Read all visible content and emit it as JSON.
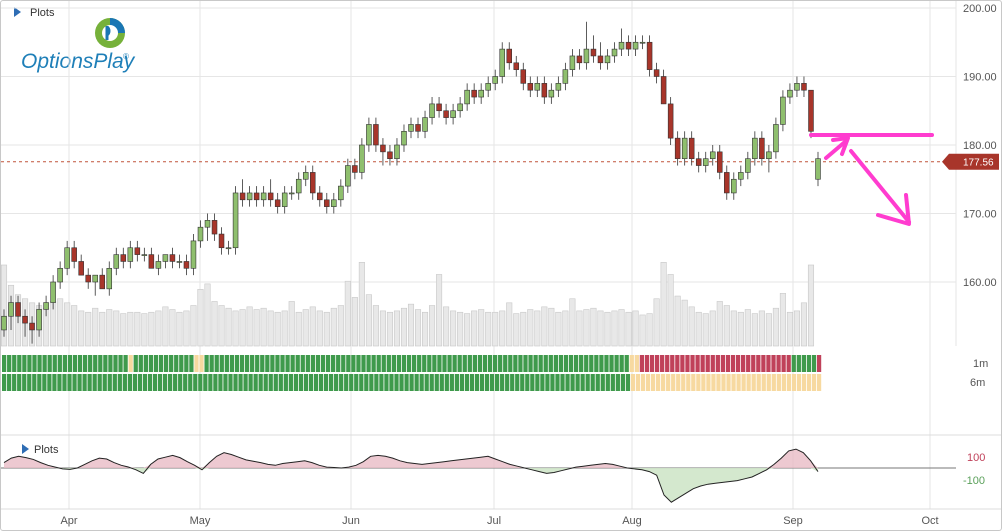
{
  "top_panel_label": "Plots",
  "bottom_panel_label": "Plots",
  "logo_text": "OptionsPlay",
  "logo_mark": "®",
  "heatmap_labels": [
    "1m",
    "6m"
  ],
  "current_price_label": "177.56",
  "colors": {
    "up": "#8fbf6e",
    "down": "#a8352a",
    "volume": "#e8e8e8",
    "heat_green": "#3f9a4c",
    "heat_yellow": "#f7d9a0",
    "heat_red": "#c0415a",
    "annotation": "#ff3ccf",
    "price_line": "#c0553c"
  },
  "chart_data": {
    "type": "candlestick",
    "x_labels": [
      "Apr",
      "May",
      "Jun",
      "Jul",
      "Aug",
      "Sep",
      "Oct"
    ],
    "y_ticks": [
      "200.00",
      "190.00",
      "180.00",
      "170.00",
      "160.00"
    ],
    "ylim": [
      150,
      201
    ],
    "current_price": 177.56,
    "candles": [
      [
        153,
        156,
        152,
        155
      ],
      [
        155,
        158,
        153,
        157
      ],
      [
        157,
        158,
        154,
        155
      ],
      [
        155,
        156,
        152,
        154
      ],
      [
        154,
        155,
        151,
        153
      ],
      [
        153,
        157,
        152,
        156
      ],
      [
        156,
        158,
        155,
        157
      ],
      [
        157,
        161,
        156,
        160
      ],
      [
        160,
        163,
        159,
        162
      ],
      [
        162,
        166,
        161,
        165
      ],
      [
        165,
        166,
        162,
        163
      ],
      [
        163,
        164,
        161,
        161
      ],
      [
        161,
        162,
        159,
        160
      ],
      [
        160,
        161,
        158,
        161
      ],
      [
        161,
        162,
        159,
        159
      ],
      [
        159,
        163,
        158,
        162
      ],
      [
        162,
        165,
        161,
        164
      ],
      [
        164,
        165,
        162,
        163
      ],
      [
        163,
        166,
        162,
        165
      ],
      [
        165,
        166,
        163,
        164
      ],
      [
        164,
        165,
        163,
        164
      ],
      [
        164,
        165,
        162,
        162
      ],
      [
        162,
        164,
        161,
        163
      ],
      [
        163,
        164,
        162,
        164
      ],
      [
        164,
        165,
        162,
        163
      ],
      [
        163,
        164,
        162,
        163
      ],
      [
        163,
        164,
        161,
        162
      ],
      [
        162,
        167,
        161,
        166
      ],
      [
        166,
        169,
        165,
        168
      ],
      [
        168,
        170,
        166,
        169
      ],
      [
        169,
        170,
        166,
        167
      ],
      [
        167,
        168,
        164,
        165
      ],
      [
        165,
        166,
        164,
        165
      ],
      [
        165,
        174,
        164,
        173
      ],
      [
        173,
        175,
        171,
        172
      ],
      [
        172,
        174,
        171,
        173
      ],
      [
        173,
        174,
        171,
        172
      ],
      [
        172,
        174,
        171,
        173
      ],
      [
        173,
        175,
        171,
        172
      ],
      [
        172,
        173,
        170,
        171
      ],
      [
        171,
        174,
        170,
        173
      ],
      [
        173,
        174,
        172,
        173
      ],
      [
        173,
        176,
        172,
        175
      ],
      [
        175,
        177,
        174,
        176
      ],
      [
        176,
        177,
        172,
        173
      ],
      [
        173,
        174,
        171,
        172
      ],
      [
        172,
        173,
        170,
        171
      ],
      [
        171,
        173,
        170,
        172
      ],
      [
        172,
        175,
        171,
        174
      ],
      [
        174,
        178,
        173,
        177
      ],
      [
        177,
        178,
        175,
        176
      ],
      [
        176,
        181,
        175,
        180
      ],
      [
        180,
        184,
        179,
        183
      ],
      [
        183,
        184,
        179,
        180
      ],
      [
        180,
        181,
        177,
        179
      ],
      [
        179,
        180,
        177,
        178
      ],
      [
        178,
        181,
        177,
        180
      ],
      [
        180,
        183,
        179,
        182
      ],
      [
        182,
        184,
        181,
        183
      ],
      [
        183,
        184,
        181,
        182
      ],
      [
        182,
        185,
        181,
        184
      ],
      [
        184,
        187,
        183,
        186
      ],
      [
        186,
        187,
        184,
        185
      ],
      [
        185,
        186,
        183,
        184
      ],
      [
        184,
        186,
        183,
        185
      ],
      [
        185,
        187,
        184,
        186
      ],
      [
        186,
        189,
        185,
        188
      ],
      [
        188,
        189,
        186,
        187
      ],
      [
        187,
        189,
        186,
        188
      ],
      [
        188,
        190,
        187,
        189
      ],
      [
        189,
        191,
        188,
        190
      ],
      [
        190,
        195,
        189,
        194
      ],
      [
        194,
        195,
        191,
        192
      ],
      [
        192,
        193,
        190,
        191
      ],
      [
        191,
        192,
        188,
        189
      ],
      [
        189,
        190,
        187,
        188
      ],
      [
        188,
        190,
        187,
        189
      ],
      [
        189,
        190,
        186,
        187
      ],
      [
        187,
        189,
        186,
        188
      ],
      [
        188,
        190,
        187,
        189
      ],
      [
        189,
        192,
        188,
        191
      ],
      [
        191,
        194,
        190,
        193
      ],
      [
        193,
        194,
        191,
        192
      ],
      [
        192,
        198,
        191,
        194
      ],
      [
        194,
        196,
        192,
        193
      ],
      [
        193,
        195,
        191,
        192
      ],
      [
        192,
        194,
        191,
        193
      ],
      [
        193,
        195,
        192,
        194
      ],
      [
        194,
        197,
        193,
        195
      ],
      [
        195,
        196,
        193,
        194
      ],
      [
        194,
        196,
        193,
        195
      ],
      [
        195,
        196,
        194,
        195
      ],
      [
        195,
        196,
        190,
        191
      ],
      [
        191,
        192,
        189,
        190
      ],
      [
        190,
        191,
        186,
        186
      ],
      [
        186,
        187,
        180,
        181
      ],
      [
        181,
        182,
        177,
        178
      ],
      [
        178,
        182,
        177,
        181
      ],
      [
        181,
        182,
        177,
        178
      ],
      [
        178,
        179,
        176,
        177
      ],
      [
        177,
        179,
        176,
        178
      ],
      [
        178,
        180,
        177,
        179
      ],
      [
        179,
        180,
        175,
        176
      ],
      [
        176,
        177,
        172,
        173
      ],
      [
        173,
        176,
        172,
        175
      ],
      [
        175,
        177,
        174,
        176
      ],
      [
        176,
        179,
        175,
        178
      ],
      [
        178,
        182,
        177,
        181
      ],
      [
        181,
        182,
        177,
        178
      ],
      [
        178,
        180,
        176,
        179
      ],
      [
        179,
        184,
        178,
        183
      ],
      [
        183,
        188,
        182,
        187
      ],
      [
        187,
        189,
        186,
        188
      ],
      [
        188,
        190,
        187,
        189
      ],
      [
        189,
        190,
        187,
        188
      ],
      [
        188,
        188,
        181,
        182
      ],
      [
        175,
        179,
        174,
        178
      ]
    ],
    "volume": [
      6.0,
      4.5,
      3.8,
      3.5,
      3.2,
      3.0,
      2.8,
      3.3,
      3.5,
      3.2,
      3.0,
      2.6,
      2.5,
      2.8,
      2.5,
      2.7,
      2.6,
      2.4,
      2.5,
      2.5,
      2.4,
      2.5,
      2.6,
      2.9,
      2.7,
      2.5,
      2.6,
      3.0,
      4.2,
      4.6,
      3.3,
      3.0,
      2.8,
      2.6,
      2.7,
      2.9,
      2.7,
      2.8,
      2.6,
      2.5,
      2.6,
      3.3,
      2.5,
      2.7,
      2.9,
      2.6,
      2.5,
      2.8,
      3.0,
      4.8,
      3.6,
      6.2,
      3.8,
      3.0,
      2.6,
      2.5,
      2.6,
      2.8,
      3.1,
      2.7,
      2.5,
      3.0,
      5.3,
      2.9,
      2.6,
      2.5,
      2.4,
      2.6,
      2.7,
      2.5,
      2.5,
      2.6,
      3.2,
      2.4,
      2.5,
      2.7,
      2.6,
      2.9,
      2.8,
      2.5,
      2.6,
      3.5,
      2.6,
      2.7,
      2.8,
      2.6,
      2.5,
      2.6,
      2.7,
      2.5,
      2.6,
      2.3,
      2.4,
      3.5,
      6.2,
      5.3,
      3.7,
      3.4,
      2.9,
      2.5,
      2.4,
      2.6,
      3.3,
      3.0,
      2.6,
      2.5,
      2.7,
      2.4,
      2.6,
      2.4,
      2.8,
      3.9,
      2.5,
      2.6,
      3.2,
      6.0
    ],
    "trend_1m": "gggggggggggggggggggggggggyggggggggggggyyggggggggggggggggggggggggggggggggggggggggggggggggggggggggggggggggggggggggggggggggggggyyrrrrrrrrrrrrrrrrrrrrrrrrrrrrrrgggggr",
    "trend_6m": "gggggggggggggggggggggggggggggggggggggggggggggggggggggggggggggggggggggggggggggggggggggggggggggggggggggggggggggggggggggggggggggyyyyyyyyyyyyyyyyyyyyyyyyyyyyyyyyyyyyyy",
    "oscillator": {
      "levels": [
        "100",
        "-100"
      ],
      "values": [
        60,
        110,
        130,
        115,
        95,
        60,
        30,
        10,
        -10,
        -15,
        0,
        40,
        80,
        110,
        100,
        60,
        30,
        10,
        -20,
        -60,
        40,
        100,
        120,
        140,
        115,
        70,
        30,
        -20,
        60,
        130,
        170,
        150,
        120,
        90,
        75,
        60,
        40,
        30,
        50,
        60,
        70,
        80,
        60,
        30,
        10,
        5,
        0,
        10,
        30,
        70,
        130,
        140,
        130,
        110,
        80,
        60,
        50,
        40,
        50,
        60,
        70,
        80,
        90,
        100,
        110,
        120,
        130,
        100,
        70,
        40,
        20,
        0,
        -20,
        -40,
        -60,
        -50,
        -30,
        -10,
        10,
        20,
        30,
        40,
        50,
        40,
        20,
        0,
        -10,
        -20,
        -40,
        -80,
        -300,
        -380,
        -330,
        -280,
        -230,
        -200,
        -180,
        -170,
        -160,
        -150,
        -140,
        -120,
        -100,
        -60,
        -20,
        40,
        110,
        190,
        210,
        170,
        80,
        -40
      ],
      "x_labels": [
        "Apr",
        "May",
        "Jun",
        "Jul",
        "Aug",
        "Sep",
        "Oct"
      ]
    }
  }
}
